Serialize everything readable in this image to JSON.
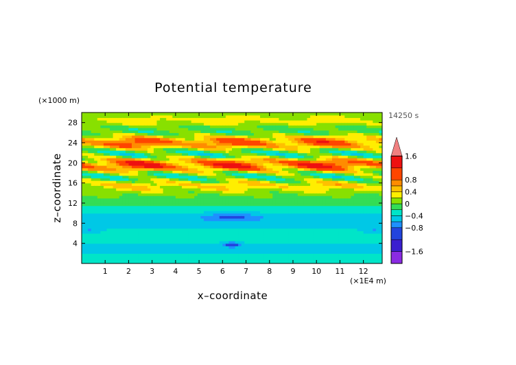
{
  "chart_data": {
    "type": "heatmap",
    "title": "Potential temperature",
    "xlabel": "x–coordinate",
    "ylabel": "z–coordinate",
    "x_unit": "(×1E4 m)",
    "y_unit": "(×1000 m)",
    "time_label": "14250 s",
    "xlim": [
      0,
      12.8
    ],
    "ylim": [
      0,
      30
    ],
    "x_ticks": [
      "1",
      "2",
      "3",
      "4",
      "5",
      "6",
      "7",
      "8",
      "9",
      "10",
      "11",
      "12"
    ],
    "y_ticks": [
      "4",
      "8",
      "12",
      "16",
      "20",
      "24",
      "28"
    ],
    "colorbar": {
      "labels": [
        "1.6",
        "0.8",
        "0.4",
        "0",
        "−0.4",
        "−0.8",
        "−1.6"
      ],
      "bands": [
        {
          "lo": -2.0,
          "hi": -1.6,
          "color": "#8a2be2"
        },
        {
          "lo": -1.6,
          "hi": -1.2,
          "color": "#3a1fcf"
        },
        {
          "lo": -1.2,
          "hi": -0.8,
          "color": "#2244dd"
        },
        {
          "lo": -0.8,
          "hi": -0.6,
          "color": "#1e90ff"
        },
        {
          "lo": -0.6,
          "hi": -0.4,
          "color": "#00c8e6"
        },
        {
          "lo": -0.4,
          "hi": -0.2,
          "color": "#00e5c8"
        },
        {
          "lo": -0.2,
          "hi": 0.0,
          "color": "#33dd55"
        },
        {
          "lo": 0.0,
          "hi": 0.2,
          "color": "#88e000"
        },
        {
          "lo": 0.2,
          "hi": 0.4,
          "color": "#ffee00"
        },
        {
          "lo": 0.4,
          "hi": 0.6,
          "color": "#ffc000"
        },
        {
          "lo": 0.6,
          "hi": 0.8,
          "color": "#ff8c00"
        },
        {
          "lo": 0.8,
          "hi": 1.2,
          "color": "#ff4500"
        },
        {
          "lo": 1.2,
          "hi": 1.6,
          "color": "#ee1111"
        },
        {
          "lo": 1.6,
          "hi": 2.0,
          "color": "#f08080"
        }
      ]
    }
  }
}
